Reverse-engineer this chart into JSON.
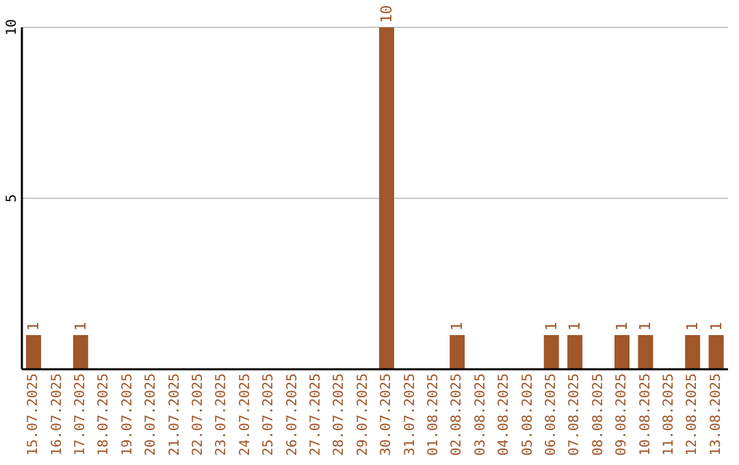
{
  "chart_data": {
    "type": "bar",
    "categories": [
      "15.07.2025",
      "16.07.2025",
      "17.07.2025",
      "18.07.2025",
      "19.07.2025",
      "20.07.2025",
      "21.07.2025",
      "22.07.2025",
      "23.07.2025",
      "24.07.2025",
      "25.07.2025",
      "26.07.2025",
      "27.07.2025",
      "28.07.2025",
      "29.07.2025",
      "30.07.2025",
      "31.07.2025",
      "01.08.2025",
      "02.08.2025",
      "03.08.2025",
      "04.08.2025",
      "05.08.2025",
      "06.08.2025",
      "07.08.2025",
      "08.08.2025",
      "09.08.2025",
      "10.08.2025",
      "11.08.2025",
      "12.08.2025",
      "13.08.2025"
    ],
    "values": [
      1,
      0,
      1,
      0,
      0,
      0,
      0,
      0,
      0,
      0,
      0,
      0,
      0,
      0,
      0,
      10,
      0,
      0,
      1,
      0,
      0,
      0,
      1,
      1,
      0,
      1,
      1,
      0,
      1,
      1
    ],
    "value_labels": [
      "1",
      null,
      "1",
      null,
      null,
      null,
      null,
      null,
      null,
      null,
      null,
      null,
      null,
      null,
      null,
      "10",
      null,
      null,
      "1",
      null,
      null,
      null,
      "1",
      "1",
      null,
      "1",
      "1",
      null,
      "1",
      "1"
    ],
    "color": "#a0572a",
    "ylim": [
      0,
      10
    ],
    "yticks": [
      5,
      10
    ],
    "grid": "y"
  }
}
